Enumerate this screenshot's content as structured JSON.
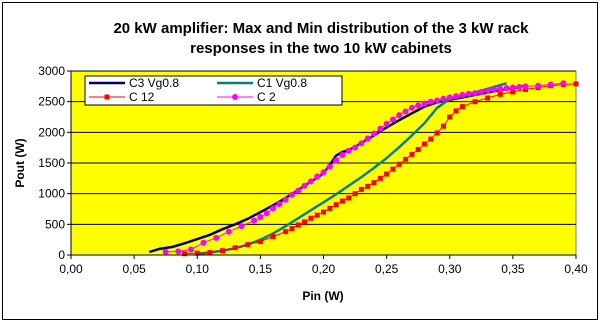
{
  "chart_data": {
    "type": "line",
    "title_line1": "20 kW amplifier: Max and Min distribution of the 3 kW rack",
    "title_line2": "responses in the two 10 kW cabinets",
    "xlabel": "Pin (W)",
    "ylabel": "Pout (W)",
    "xlim": [
      0,
      0.4
    ],
    "ylim": [
      0,
      3000
    ],
    "x_ticks": [
      "0,00",
      "0,05",
      "0,10",
      "0,15",
      "0,20",
      "0,25",
      "0,30",
      "0,35",
      "0,40"
    ],
    "y_ticks": [
      "0",
      "500",
      "1000",
      "1500",
      "2000",
      "2500",
      "3000"
    ],
    "grid": "horizontal",
    "plot_background": "#ffff00",
    "legend_placement": "top-left",
    "series": [
      {
        "name": "C3 Vg0.8",
        "color": "#000066",
        "marker": "none",
        "points": [
          [
            0.062,
            50
          ],
          [
            0.07,
            100
          ],
          [
            0.08,
            130
          ],
          [
            0.09,
            190
          ],
          [
            0.1,
            260
          ],
          [
            0.11,
            330
          ],
          [
            0.12,
            420
          ],
          [
            0.13,
            500
          ],
          [
            0.14,
            590
          ],
          [
            0.15,
            700
          ],
          [
            0.16,
            810
          ],
          [
            0.17,
            930
          ],
          [
            0.18,
            1060
          ],
          [
            0.19,
            1200
          ],
          [
            0.195,
            1260
          ],
          [
            0.2,
            1330
          ],
          [
            0.205,
            1470
          ],
          [
            0.21,
            1620
          ],
          [
            0.215,
            1680
          ],
          [
            0.22,
            1710
          ],
          [
            0.225,
            1760
          ],
          [
            0.23,
            1830
          ],
          [
            0.24,
            1950
          ],
          [
            0.25,
            2080
          ],
          [
            0.26,
            2200
          ],
          [
            0.27,
            2310
          ],
          [
            0.28,
            2420
          ],
          [
            0.29,
            2490
          ],
          [
            0.3,
            2530
          ],
          [
            0.31,
            2570
          ],
          [
            0.32,
            2610
          ],
          [
            0.33,
            2650
          ],
          [
            0.34,
            2690
          ],
          [
            0.35,
            2720
          ],
          [
            0.36,
            2760
          ]
        ]
      },
      {
        "name": "C1 Vg0.8",
        "color": "#008080",
        "marker": "none",
        "points": [
          [
            0.1,
            20
          ],
          [
            0.11,
            40
          ],
          [
            0.12,
            70
          ],
          [
            0.13,
            110
          ],
          [
            0.14,
            170
          ],
          [
            0.15,
            250
          ],
          [
            0.16,
            350
          ],
          [
            0.17,
            470
          ],
          [
            0.18,
            600
          ],
          [
            0.19,
            730
          ],
          [
            0.2,
            860
          ],
          [
            0.21,
            990
          ],
          [
            0.22,
            1130
          ],
          [
            0.23,
            1270
          ],
          [
            0.24,
            1420
          ],
          [
            0.25,
            1580
          ],
          [
            0.26,
            1760
          ],
          [
            0.27,
            1950
          ],
          [
            0.28,
            2150
          ],
          [
            0.29,
            2400
          ],
          [
            0.3,
            2540
          ],
          [
            0.31,
            2600
          ],
          [
            0.32,
            2650
          ],
          [
            0.33,
            2710
          ],
          [
            0.34,
            2770
          ],
          [
            0.345,
            2800
          ]
        ]
      },
      {
        "name": "C 12",
        "color": "#ff0000",
        "marker": "square",
        "points": [
          [
            0.09,
            20
          ],
          [
            0.1,
            30
          ],
          [
            0.11,
            40
          ],
          [
            0.12,
            70
          ],
          [
            0.13,
            120
          ],
          [
            0.14,
            170
          ],
          [
            0.15,
            220
          ],
          [
            0.16,
            300
          ],
          [
            0.17,
            380
          ],
          [
            0.175,
            430
          ],
          [
            0.18,
            490
          ],
          [
            0.185,
            540
          ],
          [
            0.19,
            600
          ],
          [
            0.195,
            650
          ],
          [
            0.2,
            700
          ],
          [
            0.205,
            760
          ],
          [
            0.21,
            820
          ],
          [
            0.215,
            880
          ],
          [
            0.22,
            930
          ],
          [
            0.225,
            1000
          ],
          [
            0.23,
            1070
          ],
          [
            0.235,
            1120
          ],
          [
            0.24,
            1180
          ],
          [
            0.245,
            1250
          ],
          [
            0.25,
            1320
          ],
          [
            0.255,
            1400
          ],
          [
            0.26,
            1480
          ],
          [
            0.265,
            1560
          ],
          [
            0.27,
            1640
          ],
          [
            0.275,
            1720
          ],
          [
            0.28,
            1810
          ],
          [
            0.285,
            1890
          ],
          [
            0.29,
            1990
          ],
          [
            0.295,
            2100
          ],
          [
            0.3,
            2250
          ],
          [
            0.305,
            2350
          ],
          [
            0.31,
            2420
          ],
          [
            0.32,
            2500
          ],
          [
            0.33,
            2560
          ],
          [
            0.34,
            2620
          ],
          [
            0.35,
            2660
          ],
          [
            0.36,
            2700
          ],
          [
            0.37,
            2730
          ],
          [
            0.38,
            2760
          ],
          [
            0.39,
            2780
          ],
          [
            0.4,
            2790
          ]
        ]
      },
      {
        "name": "C 2",
        "color": "#ff00ff",
        "marker": "circle",
        "points": [
          [
            0.075,
            50
          ],
          [
            0.085,
            60
          ],
          [
            0.095,
            90
          ],
          [
            0.105,
            200
          ],
          [
            0.115,
            280
          ],
          [
            0.125,
            380
          ],
          [
            0.135,
            470
          ],
          [
            0.145,
            560
          ],
          [
            0.15,
            620
          ],
          [
            0.155,
            680
          ],
          [
            0.16,
            760
          ],
          [
            0.165,
            830
          ],
          [
            0.17,
            900
          ],
          [
            0.175,
            980
          ],
          [
            0.18,
            1050
          ],
          [
            0.185,
            1130
          ],
          [
            0.19,
            1200
          ],
          [
            0.195,
            1280
          ],
          [
            0.2,
            1350
          ],
          [
            0.205,
            1440
          ],
          [
            0.21,
            1540
          ],
          [
            0.215,
            1630
          ],
          [
            0.22,
            1700
          ],
          [
            0.225,
            1750
          ],
          [
            0.23,
            1820
          ],
          [
            0.235,
            1900
          ],
          [
            0.24,
            1980
          ],
          [
            0.245,
            2060
          ],
          [
            0.25,
            2140
          ],
          [
            0.255,
            2210
          ],
          [
            0.26,
            2280
          ],
          [
            0.265,
            2340
          ],
          [
            0.27,
            2400
          ],
          [
            0.275,
            2440
          ],
          [
            0.28,
            2470
          ],
          [
            0.285,
            2500
          ],
          [
            0.29,
            2520
          ],
          [
            0.295,
            2550
          ],
          [
            0.3,
            2570
          ],
          [
            0.305,
            2590
          ],
          [
            0.31,
            2610
          ],
          [
            0.315,
            2630
          ],
          [
            0.32,
            2640
          ],
          [
            0.325,
            2660
          ],
          [
            0.33,
            2680
          ],
          [
            0.335,
            2700
          ],
          [
            0.34,
            2710
          ],
          [
            0.345,
            2720
          ],
          [
            0.35,
            2730
          ],
          [
            0.355,
            2740
          ],
          [
            0.36,
            2750
          ],
          [
            0.37,
            2760
          ],
          [
            0.38,
            2780
          ],
          [
            0.39,
            2800
          ]
        ]
      }
    ]
  }
}
